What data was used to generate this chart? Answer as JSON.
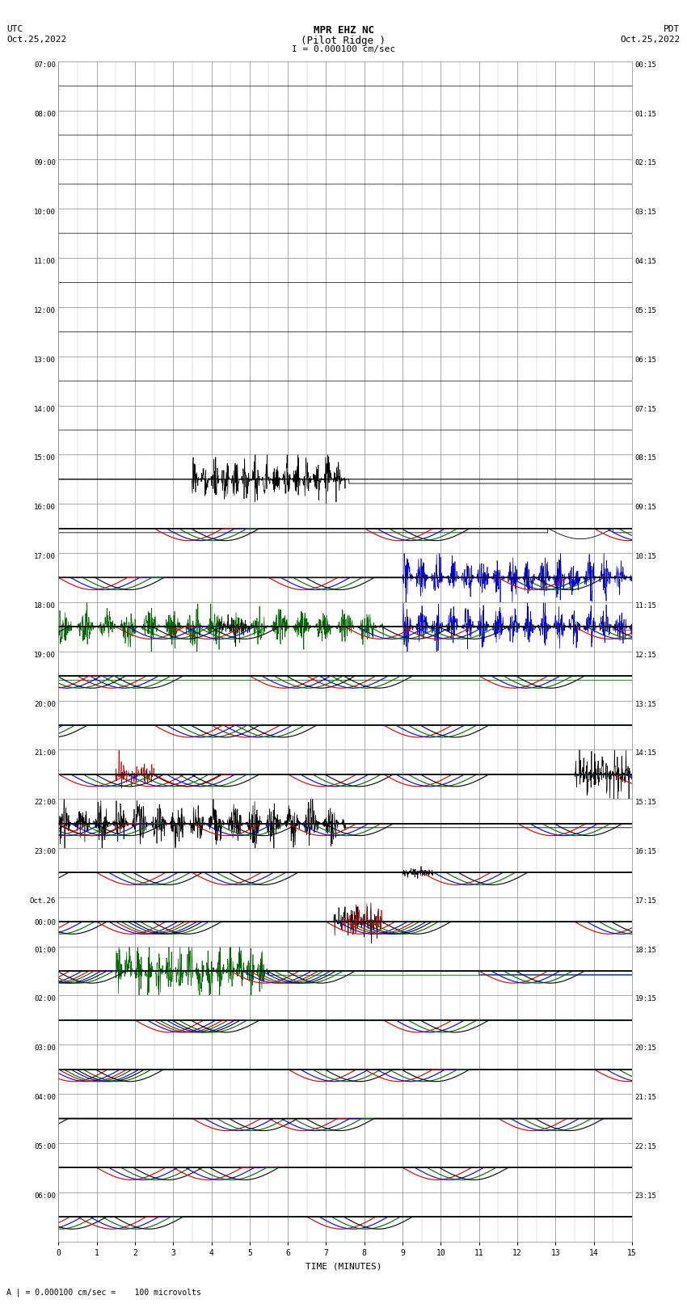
{
  "title_line1": "MPR EHZ NC",
  "title_line2": "(Pilot Ridge )",
  "title_line3": "I = 0.000100 cm/sec",
  "left_label_top": "UTC",
  "left_label_date": "Oct.25,2022",
  "right_label_top": "PDT",
  "right_label_date": "Oct.25,2022",
  "bottom_label": "TIME (MINUTES)",
  "footnote": "A | = 0.000100 cm/sec =    100 microvolts",
  "num_rows": 24,
  "x_min": 0,
  "x_max": 15,
  "utc_labels": [
    "07:00",
    "08:00",
    "09:00",
    "10:00",
    "11:00",
    "12:00",
    "13:00",
    "14:00",
    "15:00",
    "16:00",
    "17:00",
    "18:00",
    "19:00",
    "20:00",
    "21:00",
    "22:00",
    "23:00",
    "Oct.26\n00:00",
    "01:00",
    "02:00",
    "03:00",
    "04:00",
    "05:00",
    "06:00"
  ],
  "pdt_labels": [
    "00:15",
    "01:15",
    "02:15",
    "03:15",
    "04:15",
    "05:15",
    "06:15",
    "07:15",
    "08:15",
    "09:15",
    "10:15",
    "11:15",
    "12:15",
    "13:15",
    "14:15",
    "15:15",
    "16:15",
    "17:15",
    "18:15",
    "19:15",
    "20:15",
    "21:15",
    "22:15",
    "23:15"
  ],
  "c_black": "#000000",
  "c_red": "#cc0000",
  "c_green": "#006600",
  "c_blue": "#0000cc",
  "c_grid": "#888888",
  "c_minor_grid": "#cccccc"
}
